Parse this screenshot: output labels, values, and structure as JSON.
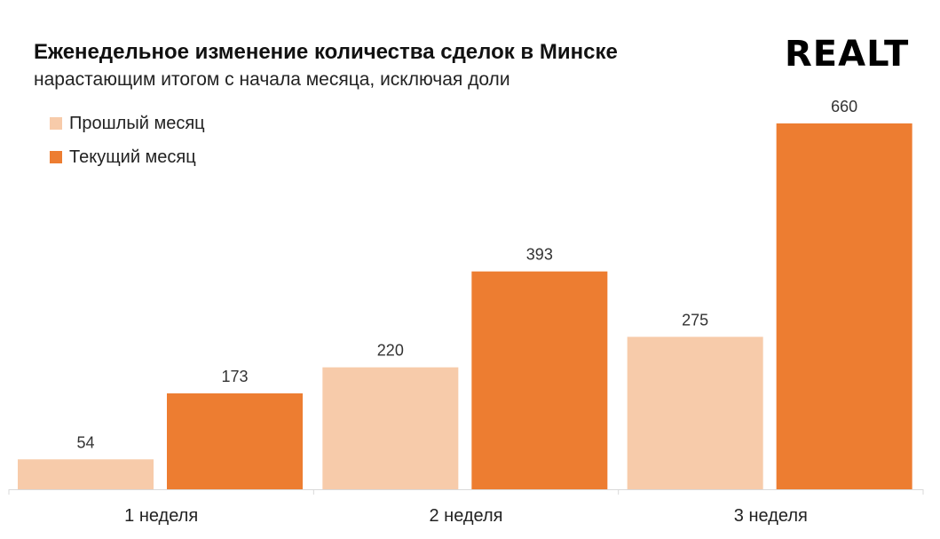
{
  "header": {
    "title": "Еженедельное изменение количества сделок в Минске",
    "subtitle": "нарастающим итогом с начала месяца, исключая доли",
    "logo": "REALT"
  },
  "colors": {
    "previous": "#f7cbaa",
    "current": "#ed7d31",
    "axis": "#d9d9d9"
  },
  "legend": [
    {
      "label": "Прошлый месяц",
      "color": "#f7cbaa"
    },
    {
      "label": "Текущий месяц",
      "color": "#ed7d31"
    }
  ],
  "chart_data": {
    "type": "bar",
    "title": "Еженедельное изменение количества сделок в Минске",
    "subtitle": "нарастающим итогом с начала месяца, исключая доли",
    "categories": [
      "1 неделя",
      "2 неделя",
      "3 неделя"
    ],
    "series": [
      {
        "name": "Прошлый месяц",
        "values": [
          54,
          220,
          275
        ],
        "labels": [
          "54",
          "220",
          "275"
        ]
      },
      {
        "name": "Текущий месяц",
        "values": [
          173,
          393,
          660
        ],
        "labels": [
          "173",
          "393",
          "660"
        ]
      }
    ],
    "xlabel": "",
    "ylabel": "",
    "ylim": [
      0,
      700
    ],
    "grid": false,
    "legend_position": "top-left"
  }
}
